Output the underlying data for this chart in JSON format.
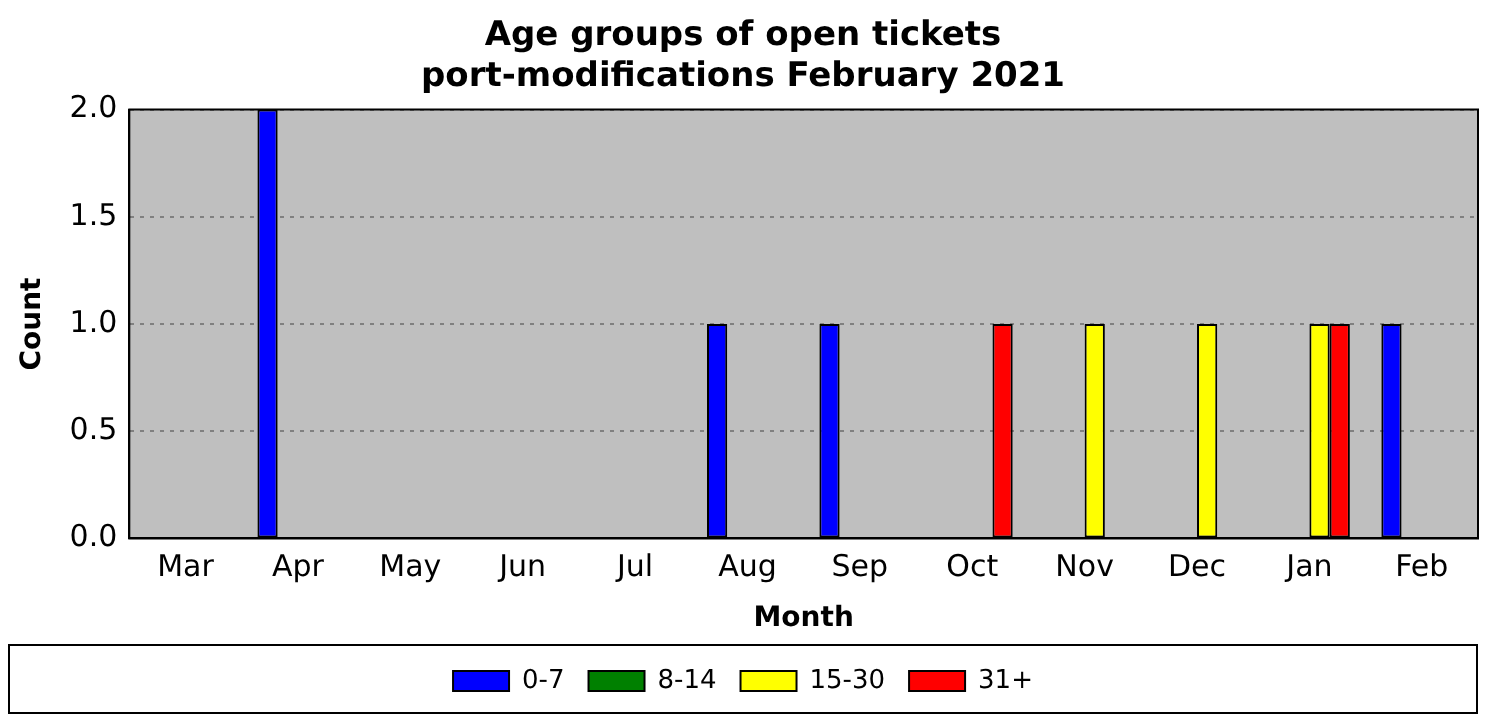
{
  "chart_data": {
    "type": "bar",
    "title": "Age groups of open tickets\nport-modifications February 2021",
    "xlabel": "Month",
    "ylabel": "Count",
    "categories": [
      "Mar",
      "Apr",
      "May",
      "Jun",
      "Jul",
      "Aug",
      "Sep",
      "Oct",
      "Nov",
      "Dec",
      "Jan",
      "Feb"
    ],
    "series": [
      {
        "name": "0-7",
        "color": "#0000ff",
        "values": [
          0,
          2,
          0,
          0,
          0,
          1,
          1,
          0,
          0,
          0,
          0,
          1
        ]
      },
      {
        "name": "8-14",
        "color": "#008000",
        "values": [
          0,
          0,
          0,
          0,
          0,
          0,
          0,
          0,
          0,
          0,
          0,
          0
        ]
      },
      {
        "name": "15-30",
        "color": "#ffff00",
        "values": [
          0,
          0,
          0,
          0,
          0,
          0,
          0,
          0,
          1,
          1,
          1,
          0
        ]
      },
      {
        "name": "31+",
        "color": "#ff0000",
        "values": [
          0,
          0,
          0,
          0,
          0,
          0,
          0,
          1,
          0,
          0,
          1,
          0
        ]
      }
    ],
    "ylim": [
      0,
      2
    ],
    "yticks": [
      {
        "value": 0,
        "label": "0.0"
      },
      {
        "value": 0.5,
        "label": "0.5"
      },
      {
        "value": 1,
        "label": "1.0"
      },
      {
        "value": 1.5,
        "label": "1.5"
      },
      {
        "value": 2,
        "label": "2.0"
      }
    ],
    "grid": "y",
    "legend": "bottom"
  }
}
